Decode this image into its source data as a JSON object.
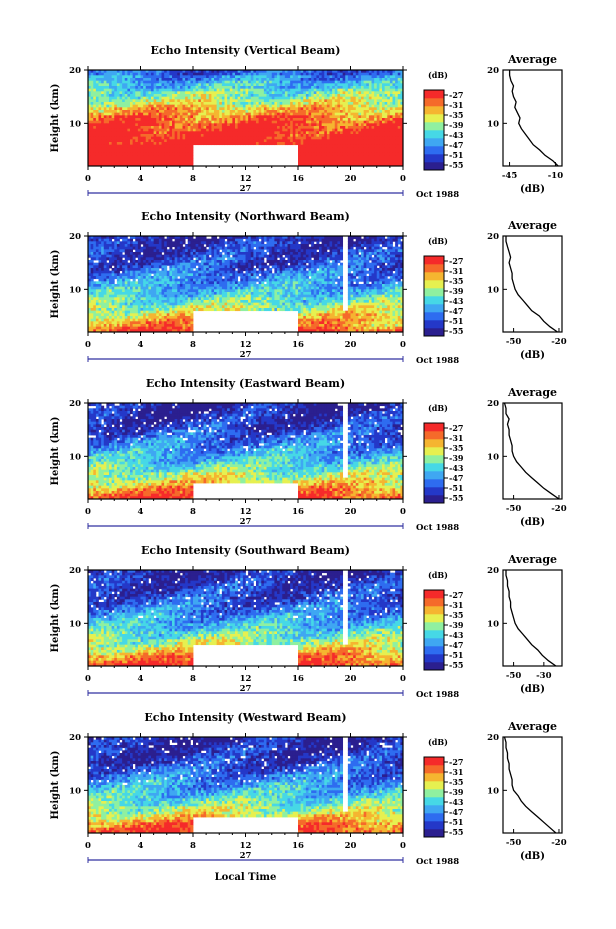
{
  "figure": {
    "xlabel": "Local Time",
    "date_label": "Oct 1988",
    "day_label": "27"
  },
  "colorbar": {
    "unit": "(dB)",
    "ticks": [
      "-27",
      "-31",
      "-35",
      "-39",
      "-43",
      "-47",
      "-51",
      "-55"
    ],
    "range": [
      -57,
      -25
    ],
    "colors": [
      "#2b1f8f",
      "#2438c8",
      "#2e6cf0",
      "#3fa7f2",
      "#46d8e6",
      "#8ff0a0",
      "#e6f050",
      "#f5b530",
      "#f56a2a",
      "#f52a2a"
    ]
  },
  "average": {
    "title": "Average",
    "xlabel": "(dB)"
  },
  "chart_data": [
    {
      "type": "heatmap",
      "title": "Echo Intensity (Vertical Beam)",
      "ylabel": "Height (km)",
      "xlim": [
        0,
        24
      ],
      "ylim": [
        2,
        20
      ],
      "xticks": [
        "0",
        "4",
        "8",
        "12",
        "16",
        "20",
        "0"
      ],
      "yticks": [
        "20",
        "10"
      ],
      "gap_hours": [
        8,
        16
      ],
      "gap_height_max": 6,
      "mean_profile_db": [
        -50,
        -47,
        -45,
        -44,
        -42,
        -40,
        -39,
        -37,
        -35,
        -33,
        -32,
        -30,
        -29,
        -28,
        -27,
        -26,
        -25,
        -24,
        -22,
        -20,
        -17,
        -14,
        -12,
        -10
      ],
      "average": {
        "type": "line",
        "height_km": [
          2,
          3,
          4,
          5,
          6,
          7,
          8,
          9,
          10,
          11,
          12,
          13,
          14,
          15,
          16,
          17,
          18,
          19,
          20
        ],
        "values_db": [
          -8,
          -12,
          -18,
          -22,
          -27,
          -30,
          -33,
          -36,
          -38,
          -37,
          -39,
          -41,
          -40,
          -42,
          -43,
          -42,
          -44,
          -45,
          -45
        ],
        "xlim": [
          -50,
          -5
        ],
        "xticks": [
          "-45",
          "-10"
        ],
        "yticks": [
          "20",
          "10"
        ]
      }
    },
    {
      "type": "heatmap",
      "title": "Echo Intensity (Northward Beam)",
      "ylabel": "Height (km)",
      "xlim": [
        0,
        24
      ],
      "ylim": [
        2,
        20
      ],
      "xticks": [
        "0",
        "4",
        "8",
        "12",
        "16",
        "20",
        "0"
      ],
      "yticks": [
        "20",
        "10"
      ],
      "gap_hours": [
        8,
        16
      ],
      "gap_height_max": 6,
      "mean_profile_db": [
        -54,
        -53,
        -53,
        -52,
        -52,
        -51,
        -51,
        -50,
        -49,
        -48,
        -47,
        -46,
        -45,
        -44,
        -43,
        -41,
        -40,
        -38,
        -37,
        -35,
        -33,
        -32,
        -30,
        -28
      ],
      "average": {
        "type": "line",
        "height_km": [
          2,
          3,
          4,
          5,
          6,
          7,
          8,
          9,
          10,
          11,
          12,
          13,
          14,
          15,
          16,
          17,
          18,
          19,
          20
        ],
        "values_db": [
          -21,
          -26,
          -30,
          -33,
          -38,
          -41,
          -44,
          -47,
          -49,
          -50,
          -51,
          -51,
          -52,
          -53,
          -52,
          -53,
          -54,
          -55,
          -55
        ],
        "xlim": [
          -57,
          -18
        ],
        "xticks": [
          "-50",
          "-20"
        ],
        "yticks": [
          "20",
          "10"
        ]
      }
    },
    {
      "type": "heatmap",
      "title": "Echo Intensity (Eastward Beam)",
      "ylabel": "Height (km)",
      "xlim": [
        0,
        24
      ],
      "ylim": [
        2,
        20
      ],
      "xticks": [
        "0",
        "4",
        "8",
        "12",
        "16",
        "20",
        "0"
      ],
      "yticks": [
        "20",
        "10"
      ],
      "gap_hours": [
        8,
        16
      ],
      "gap_height_max": 5,
      "mean_profile_db": [
        -54,
        -54,
        -53,
        -53,
        -52,
        -52,
        -51,
        -50,
        -49,
        -48,
        -47,
        -46,
        -45,
        -44,
        -43,
        -41,
        -40,
        -38,
        -37,
        -35,
        -33,
        -31,
        -29,
        -28
      ],
      "average": {
        "type": "line",
        "height_km": [
          2,
          3,
          4,
          5,
          6,
          7,
          8,
          9,
          10,
          11,
          12,
          13,
          14,
          15,
          16,
          17,
          18,
          19,
          20
        ],
        "values_db": [
          -20,
          -25,
          -30,
          -34,
          -38,
          -42,
          -45,
          -48,
          -50,
          -51,
          -51,
          -52,
          -53,
          -53,
          -54,
          -53,
          -55,
          -55,
          -56
        ],
        "xlim": [
          -57,
          -18
        ],
        "xticks": [
          "-50",
          "-20"
        ],
        "yticks": [
          "20",
          "10"
        ]
      }
    },
    {
      "type": "heatmap",
      "title": "Echo Intensity (Southward Beam)",
      "ylabel": "Height (km)",
      "xlim": [
        0,
        24
      ],
      "ylim": [
        2,
        20
      ],
      "xticks": [
        "0",
        "4",
        "8",
        "12",
        "16",
        "20",
        "0"
      ],
      "yticks": [
        "20",
        "10"
      ],
      "gap_hours": [
        8,
        16
      ],
      "gap_height_max": 6,
      "mean_profile_db": [
        -54,
        -53,
        -53,
        -52,
        -52,
        -51,
        -51,
        -50,
        -49,
        -48,
        -47,
        -46,
        -45,
        -44,
        -43,
        -41,
        -40,
        -38,
        -37,
        -35,
        -33,
        -31,
        -29,
        -28
      ],
      "average": {
        "type": "line",
        "height_km": [
          2,
          3,
          4,
          5,
          6,
          7,
          8,
          9,
          10,
          11,
          12,
          13,
          14,
          15,
          16,
          17,
          18,
          19,
          20
        ],
        "values_db": [
          -22,
          -27,
          -31,
          -34,
          -38,
          -41,
          -44,
          -47,
          -49,
          -50,
          -51,
          -52,
          -52,
          -53,
          -53,
          -54,
          -54,
          -55,
          -55
        ],
        "xlim": [
          -57,
          -18
        ],
        "xticks": [
          "-50",
          "-30"
        ],
        "yticks": [
          "20",
          "10"
        ]
      }
    },
    {
      "type": "heatmap",
      "title": "Echo Intensity (Westward Beam)",
      "ylabel": "Height (km)",
      "xlim": [
        0,
        24
      ],
      "ylim": [
        2,
        20
      ],
      "xticks": [
        "0",
        "4",
        "8",
        "12",
        "16",
        "20",
        "0"
      ],
      "yticks": [
        "20",
        "10"
      ],
      "gap_hours": [
        8,
        16
      ],
      "gap_height_max": 5,
      "mean_profile_db": [
        -54,
        -54,
        -53,
        -53,
        -52,
        -52,
        -51,
        -50,
        -49,
        -48,
        -47,
        -46,
        -45,
        -44,
        -43,
        -41,
        -40,
        -38,
        -37,
        -35,
        -33,
        -31,
        -29,
        -28
      ],
      "average": {
        "type": "line",
        "height_km": [
          2,
          3,
          4,
          5,
          6,
          7,
          8,
          9,
          10,
          11,
          12,
          13,
          14,
          15,
          16,
          17,
          18,
          19,
          20
        ],
        "values_db": [
          -22,
          -26,
          -30,
          -34,
          -38,
          -42,
          -45,
          -47,
          -50,
          -51,
          -51,
          -52,
          -53,
          -53,
          -54,
          -54,
          -55,
          -55,
          -56
        ],
        "xlim": [
          -57,
          -18
        ],
        "xticks": [
          "-50",
          "-20"
        ],
        "yticks": [
          "20",
          "10"
        ]
      }
    }
  ]
}
